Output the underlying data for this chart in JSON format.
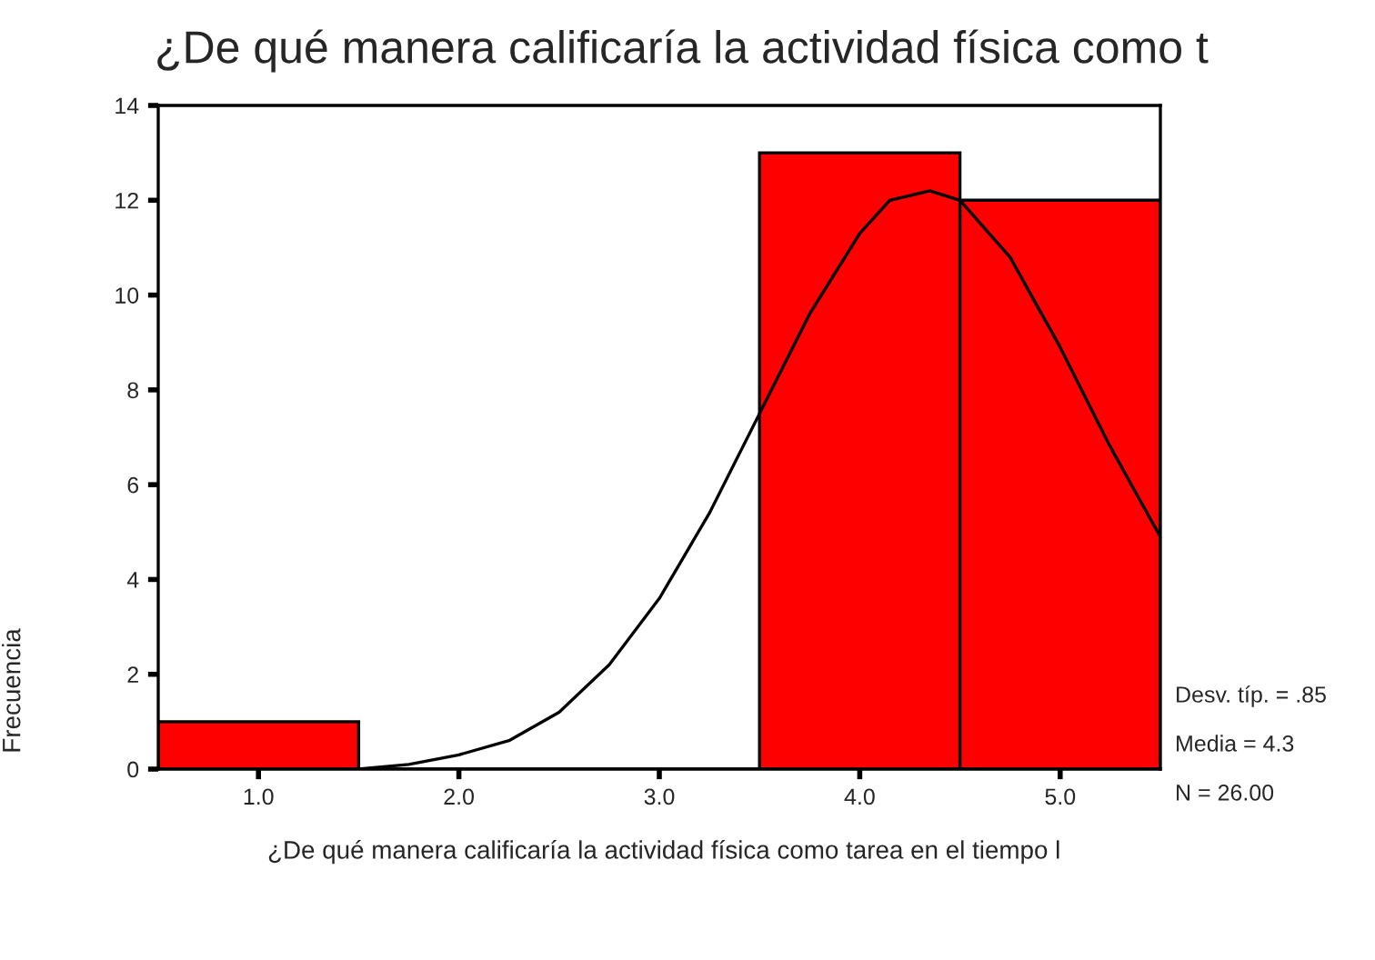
{
  "chart_data": {
    "type": "histogram",
    "title": "¿De qué manera calificaría la actividad física como t",
    "xlabel": "¿De qué manera calificaría la actividad física como tarea en el tiempo l",
    "ylabel": "Frecuencia",
    "bins": [
      0.5,
      1.5,
      2.5,
      3.5,
      4.5,
      5.5
    ],
    "series": [
      {
        "color": "#ff0000",
        "values": [
          1,
          0,
          0,
          13,
          12
        ]
      },
      {
        "type": "line",
        "color": "#000000",
        "x": [
          1.5,
          1.75,
          2.0,
          2.25,
          2.5,
          2.75,
          3.0,
          3.25,
          3.5,
          3.75,
          4.0,
          4.15,
          4.35,
          4.5,
          4.75,
          5.0,
          5.25,
          5.5
        ],
        "values": [
          0.0,
          0.1,
          0.3,
          0.6,
          1.2,
          2.2,
          3.6,
          5.4,
          7.5,
          9.6,
          11.3,
          12.0,
          12.2,
          12.0,
          10.8,
          8.9,
          6.8,
          4.9
        ]
      }
    ],
    "xlim": [
      0.5,
      5.5
    ],
    "xticks": [
      {
        "value": 1,
        "label": "1.0"
      },
      {
        "value": 2,
        "label": "2.0"
      },
      {
        "value": 3,
        "label": "3.0"
      },
      {
        "value": 4,
        "label": "4.0"
      },
      {
        "value": 5,
        "label": "5.0"
      }
    ],
    "ylim": [
      0,
      14
    ],
    "yticks": [
      0,
      2,
      4,
      6,
      8,
      10,
      12,
      14
    ],
    "annotations": [
      "Desv. típ. = .85",
      "Media = 4.3",
      "N = 26.00"
    ],
    "grid": false,
    "legend": false
  }
}
